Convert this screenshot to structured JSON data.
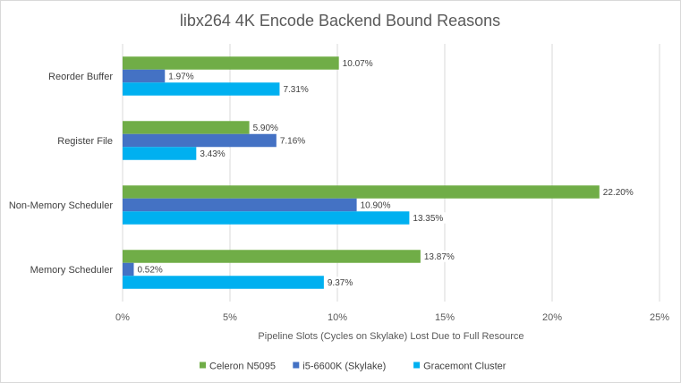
{
  "chart_data": {
    "type": "bar",
    "orientation": "horizontal",
    "title": "libx264 4K Encode Backend Bound Reasons",
    "xlabel": "Pipeline Slots (Cycles on Skylake) Lost Due to Full Resource",
    "ylabel": "",
    "xlim": [
      0,
      25
    ],
    "x_ticks": [
      "0%",
      "5%",
      "10%",
      "15%",
      "20%",
      "25%"
    ],
    "grid": true,
    "legend_position": "bottom",
    "categories": [
      "Reorder Buffer",
      "Register File",
      "Non-Memory Scheduler",
      "Memory Scheduler"
    ],
    "series": [
      {
        "name": "Celeron N5095",
        "color": "#70ad47",
        "values": [
          10.07,
          5.9,
          22.2,
          13.87
        ],
        "labels": [
          "10.07%",
          "5.90%",
          "22.20%",
          "13.87%"
        ]
      },
      {
        "name": "i5-6600K (Skylake)",
        "color": "#4472c4",
        "values": [
          1.97,
          7.16,
          10.9,
          0.52
        ],
        "labels": [
          "1.97%",
          "7.16%",
          "10.90%",
          "0.52%"
        ]
      },
      {
        "name": "Gracemont Cluster",
        "color": "#00b0f0",
        "values": [
          7.31,
          3.43,
          13.35,
          9.37
        ],
        "labels": [
          "7.31%",
          "3.43%",
          "13.35%",
          "9.37%"
        ]
      }
    ]
  }
}
